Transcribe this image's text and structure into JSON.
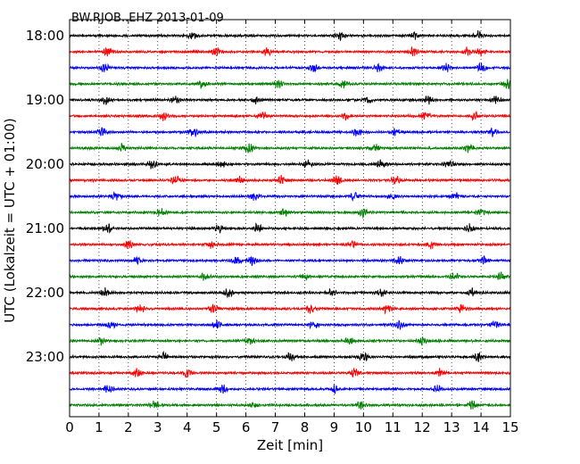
{
  "chart_data": {
    "type": "line",
    "title": "BW.RJOB..EHZ 2013-01-09",
    "xlabel": "Zeit  [min]",
    "ylabel": "UTC (Lokalzeit = UTC + 01:00)",
    "xlim": [
      0,
      15
    ],
    "x_ticks": [
      "0",
      "1",
      "2",
      "3",
      "4",
      "5",
      "6",
      "7",
      "8",
      "9",
      "10",
      "11",
      "12",
      "13",
      "14",
      "15"
    ],
    "y_tick_labels": [
      "18:00",
      "19:00",
      "20:00",
      "21:00",
      "22:00",
      "23:00"
    ],
    "grid": "vertical dotted",
    "trace_interval_min": 15,
    "series": [
      {
        "row_start": "18:00",
        "color": "#000000",
        "bursts_min": [
          4.2,
          9.2,
          11.7,
          13.9
        ]
      },
      {
        "row_start": "18:15",
        "color": "#ff0000",
        "bursts_min": [
          1.3,
          5.0,
          6.7,
          11.7,
          13.5,
          14.0
        ]
      },
      {
        "row_start": "18:30",
        "color": "#0000ff",
        "bursts_min": [
          1.2,
          8.3,
          10.5,
          12.8,
          14.0
        ]
      },
      {
        "row_start": "18:45",
        "color": "#008000",
        "bursts_min": [
          4.5,
          7.1,
          9.3,
          14.9
        ]
      },
      {
        "row_start": "19:00",
        "color": "#000000",
        "bursts_min": [
          1.2,
          3.6,
          6.3,
          10.2,
          12.2,
          14.5
        ]
      },
      {
        "row_start": "19:15",
        "color": "#ff0000",
        "bursts_min": [
          3.2,
          6.6,
          9.4,
          12.1,
          13.8
        ]
      },
      {
        "row_start": "19:30",
        "color": "#0000ff",
        "bursts_min": [
          1.1,
          4.2,
          9.8,
          11.1,
          14.4
        ]
      },
      {
        "row_start": "19:45",
        "color": "#008000",
        "bursts_min": [
          1.8,
          6.1,
          10.4,
          13.6
        ]
      },
      {
        "row_start": "20:00",
        "color": "#000000",
        "bursts_min": [
          2.8,
          5.2,
          8.1,
          10.6,
          12.9
        ]
      },
      {
        "row_start": "20:15",
        "color": "#ff0000",
        "bursts_min": [
          3.6,
          5.8,
          7.2,
          9.1,
          11.1
        ]
      },
      {
        "row_start": "20:30",
        "color": "#0000ff",
        "bursts_min": [
          1.6,
          6.3,
          9.7,
          11.0,
          13.1
        ]
      },
      {
        "row_start": "20:45",
        "color": "#008000",
        "bursts_min": [
          3.1,
          7.3,
          10.0,
          14.0
        ]
      },
      {
        "row_start": "21:00",
        "color": "#000000",
        "bursts_min": [
          1.3,
          5.1,
          6.4,
          13.6
        ]
      },
      {
        "row_start": "21:15",
        "color": "#ff0000",
        "bursts_min": [
          2.0,
          4.8,
          9.6,
          12.3
        ]
      },
      {
        "row_start": "21:30",
        "color": "#0000ff",
        "bursts_min": [
          2.3,
          5.7,
          6.2,
          11.2,
          14.1
        ]
      },
      {
        "row_start": "21:45",
        "color": "#008000",
        "bursts_min": [
          4.6,
          8.0,
          13.1,
          14.7
        ]
      },
      {
        "row_start": "22:00",
        "color": "#000000",
        "bursts_min": [
          1.2,
          5.4,
          8.9,
          10.6,
          13.7
        ]
      },
      {
        "row_start": "22:15",
        "color": "#ff0000",
        "bursts_min": [
          2.4,
          4.9,
          8.2,
          10.8,
          13.3
        ]
      },
      {
        "row_start": "22:30",
        "color": "#0000ff",
        "bursts_min": [
          1.4,
          5.0,
          8.3,
          11.2,
          14.5
        ]
      },
      {
        "row_start": "22:45",
        "color": "#008000",
        "bursts_min": [
          1.1,
          6.1,
          9.5,
          12.0
        ]
      },
      {
        "row_start": "23:00",
        "color": "#000000",
        "bursts_min": [
          3.2,
          7.5,
          10.0,
          13.9
        ]
      },
      {
        "row_start": "23:15",
        "color": "#ff0000",
        "bursts_min": [
          2.3,
          4.0,
          9.7,
          12.6
        ]
      },
      {
        "row_start": "23:30",
        "color": "#0000ff",
        "bursts_min": [
          1.3,
          5.2,
          9.0,
          12.5
        ]
      },
      {
        "row_start": "23:45",
        "color": "#008000",
        "bursts_min": [
          2.9,
          6.3,
          9.9,
          13.7
        ]
      }
    ]
  }
}
